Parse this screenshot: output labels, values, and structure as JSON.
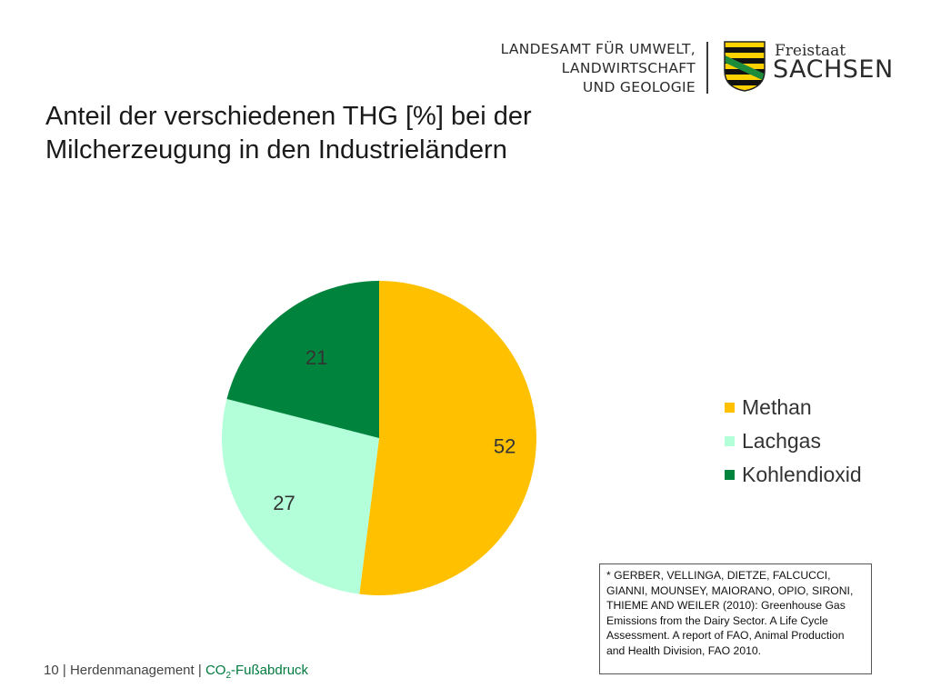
{
  "header": {
    "org_line1": "LANDESAMT FÜR UMWELT,",
    "org_line2": "LANDWIRTSCHAFT",
    "org_line3": "UND GEOLOGIE",
    "state_prefix": "Freistaat",
    "state_name": "SACHSEN",
    "crest_icon": "saxony-coat-of-arms-icon"
  },
  "slide": {
    "title_line1": "Anteil der verschiedenen THG [%] bei der",
    "title_line2": "Milcherzeugung in den Industrieländern"
  },
  "chart_data": {
    "type": "pie",
    "title": "Anteil der verschiedenen THG [%] bei der Milcherzeugung in den Industrieländern",
    "categories": [
      "Methan",
      "Lachgas",
      "Kohlendioxid"
    ],
    "values": [
      52,
      27,
      21
    ],
    "value_labels": [
      "52",
      "27",
      "21"
    ],
    "colors": [
      "#FFC000",
      "#B3FFD9",
      "#00843D"
    ],
    "legend_position": "right"
  },
  "source_box": {
    "text": "* GERBER, VELLINGA, DIETZE, FALCUCCI, GIANNI, MOUNSEY, MAIORANO, OPIO, SIRONI, THIEME AND WEILER (2010): Greenhouse Gas Emissions from the Dairy Sector.  A Life Cycle Assessment. A report of FAO, Animal Production and Health Division, FAO 2010."
  },
  "footer": {
    "page_number": "10",
    "separator": "|",
    "section": "Herdenmanagement",
    "topic_prefix": "CO",
    "topic_subscript": "2",
    "topic_suffix": "-Fußabdruck"
  },
  "colors": {
    "accent_green": "#007a3d",
    "methan": "#FFC000",
    "lachgas": "#B3FFD9",
    "kohlendioxid": "#00843D"
  }
}
